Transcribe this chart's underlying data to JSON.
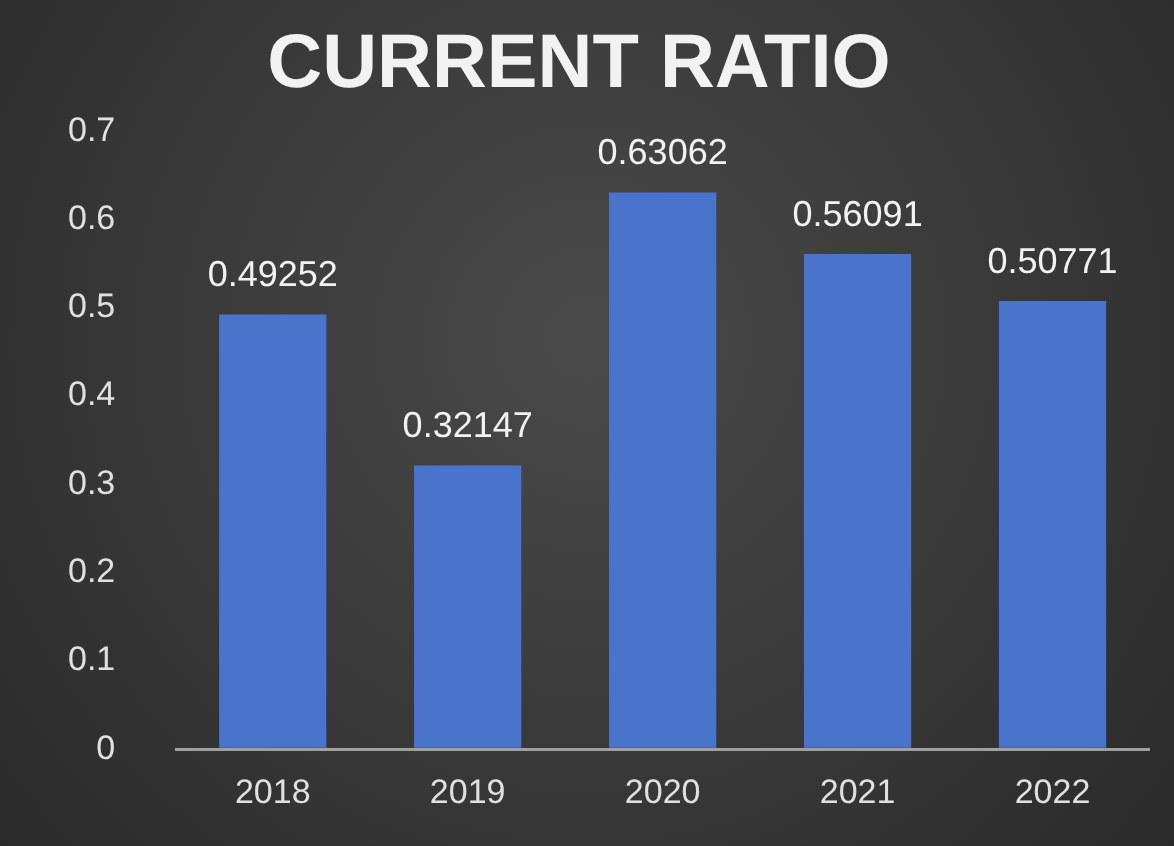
{
  "chart_data": {
    "type": "bar",
    "title": "CURRENT RATIO",
    "categories": [
      "2018",
      "2019",
      "2020",
      "2021",
      "2022"
    ],
    "values": [
      0.49252,
      0.32147,
      0.63062,
      0.56091,
      0.50771
    ],
    "color": "#4a74cc",
    "ylim": [
      0,
      0.7
    ],
    "yticks": [
      0,
      0.1,
      0.2,
      0.3,
      0.4,
      0.5,
      0.6,
      0.7
    ],
    "grid": false,
    "legend": false,
    "data_labels": true
  }
}
